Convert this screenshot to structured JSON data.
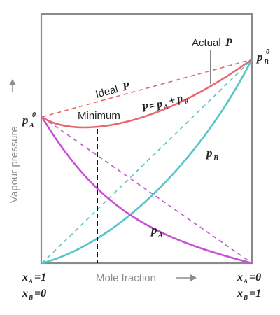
{
  "axes": {
    "y_label": "Vapour pressure",
    "x_label": "Mole fraction",
    "left_bottom": {
      "line1_var": "x",
      "line1_sub": "A",
      "line1_val": "=1",
      "line2_var": "x",
      "line2_sub": "B",
      "line2_val": "=0"
    },
    "right_bottom": {
      "line1_var": "x",
      "line1_sub": "A",
      "line1_val": "=0",
      "line2_var": "x",
      "line2_sub": "B",
      "line2_val": "=1"
    }
  },
  "labels": {
    "pA0": {
      "var": "p",
      "sub": "A",
      "sup": "0"
    },
    "pB0": {
      "var": "p",
      "sub": "B",
      "sup": "0"
    },
    "ideal_prefix": "Ideal ",
    "ideal_var": "P",
    "actual_prefix": "Actual",
    "actual_var": "P",
    "total_eq": {
      "lhs": "P",
      "eq": "=",
      "p1": "p",
      "s1": "A",
      "plus": "+",
      "p2": "p",
      "s2": "B"
    },
    "minimum": "Minimum",
    "pA": {
      "var": "p",
      "sub": "A"
    },
    "pB": {
      "var": "p",
      "sub": "B"
    }
  },
  "colors": {
    "total": "#e8676a",
    "pA": "#c84fd8",
    "pB": "#56c5c8",
    "frame": "#8a8a8a",
    "axis_text": "#8c8c8c",
    "minimum_line": "#111111"
  },
  "style": {
    "total_curve": "negative deviation, minimum",
    "dashed": "ideal (Raoult) lines"
  }
}
